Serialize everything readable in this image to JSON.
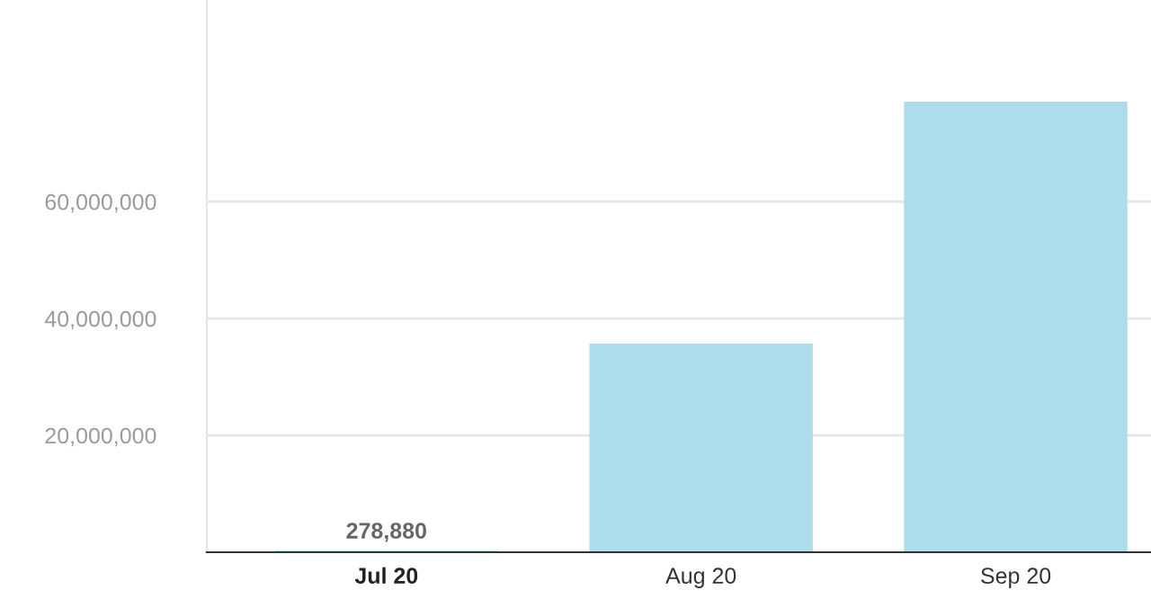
{
  "chart_data": {
    "type": "bar",
    "categories": [
      "Jul 20",
      "Aug 20",
      "Sep 20"
    ],
    "values": [
      278880,
      35700000,
      77100000
    ],
    "color": "#addcec",
    "value_labels": [
      "278,880",
      null,
      null
    ],
    "ylim": [
      0,
      94500000
    ],
    "yticks": [
      {
        "value": 20000000,
        "label": "20,000,000"
      },
      {
        "value": 40000000,
        "label": "40,000,000"
      },
      {
        "value": 60000000,
        "label": "60,000,000"
      }
    ],
    "grid": "y"
  }
}
